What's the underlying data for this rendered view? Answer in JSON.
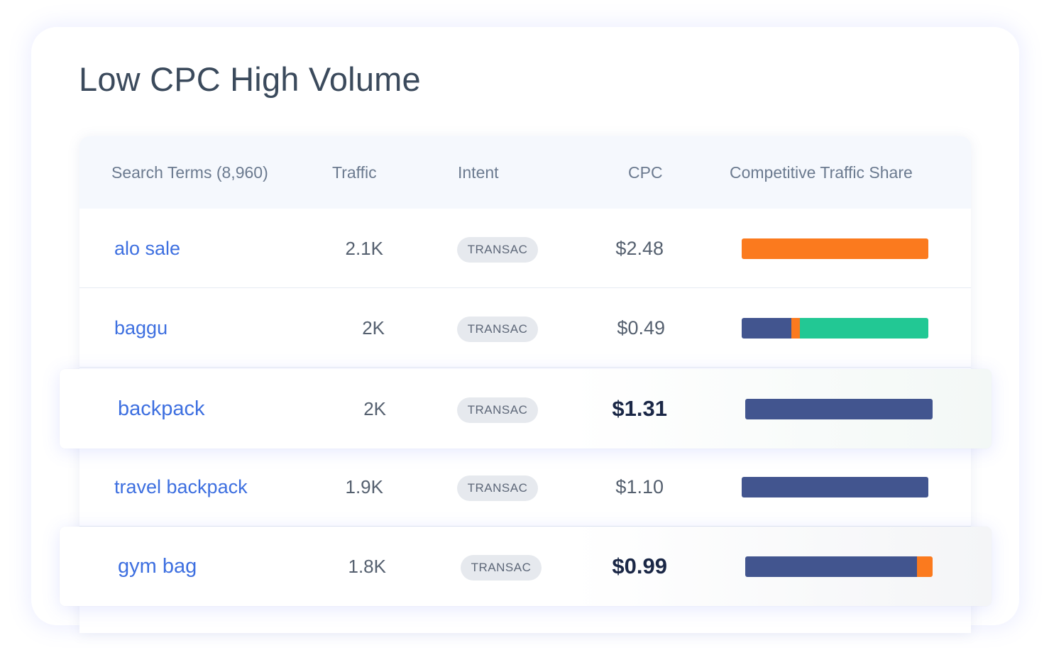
{
  "title": "Low CPC High Volume",
  "colors": {
    "navy": "#42558f",
    "orange": "#fb7a1e",
    "green": "#22c894"
  },
  "table": {
    "headers": {
      "search_terms": "Search Terms (8,960)",
      "traffic": "Traffic",
      "intent": "Intent",
      "cpc": "CPC",
      "share": "Competitive Traffic Share"
    },
    "rows": [
      {
        "term": "alo sale",
        "traffic": "2.1K",
        "intent": "TRANSAC",
        "cpc": "$2.48",
        "highlighted": false,
        "share": [
          {
            "color": "orange",
            "pct": 100
          }
        ]
      },
      {
        "term": "baggu",
        "traffic": "2K",
        "intent": "TRANSAC",
        "cpc": "$0.49",
        "highlighted": false,
        "share": [
          {
            "color": "navy",
            "pct": 26.5
          },
          {
            "color": "orange",
            "pct": 4.5
          },
          {
            "color": "green",
            "pct": 69
          }
        ]
      },
      {
        "term": "backpack",
        "traffic": "2K",
        "intent": "TRANSAC",
        "cpc": "$1.31",
        "highlighted": true,
        "share": [
          {
            "color": "navy",
            "pct": 100
          }
        ]
      },
      {
        "term": "travel backpack",
        "traffic": "1.9K",
        "intent": "TRANSAC",
        "cpc": "$1.10",
        "highlighted": false,
        "share": [
          {
            "color": "navy",
            "pct": 100
          }
        ]
      },
      {
        "term": "gym bag",
        "traffic": "1.8K",
        "intent": "TRANSAC",
        "cpc": "$0.99",
        "highlighted": true,
        "share": [
          {
            "color": "navy",
            "pct": 91.5
          },
          {
            "color": "orange",
            "pct": 8.5
          }
        ]
      }
    ]
  }
}
